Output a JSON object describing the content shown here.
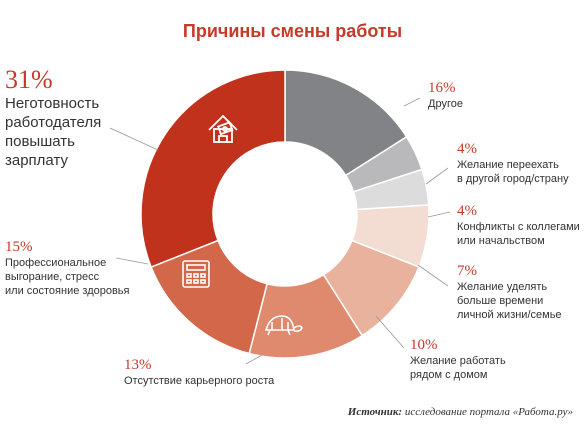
{
  "chart_data": {
    "type": "pie",
    "title": "Причины смены работы",
    "slices": [
      {
        "label": "Другое",
        "value": 16,
        "value_label": "16%",
        "color": "#828386"
      },
      {
        "label": "Желание переехать в другой город/страну",
        "value": 4,
        "value_label": "4%",
        "color": "#b9b9bb"
      },
      {
        "label": "Конфликты с коллегами или начальством",
        "value": 4,
        "value_label": "4%",
        "color": "#dcdcdd"
      },
      {
        "label": "Желание уделять больше времени личной жизни/семье",
        "value": 7,
        "value_label": "7%",
        "color": "#f3ddd3"
      },
      {
        "label": "Желание работать рядом с домом",
        "value": 10,
        "value_label": "10%",
        "color": "#e9b29c"
      },
      {
        "label": "Отсутствие карьерного роста",
        "value": 13,
        "value_label": "13%",
        "color": "#df8a6e"
      },
      {
        "label": "Профессиональное выгорание, стресс или состояние здоровья",
        "value": 15,
        "value_label": "15%",
        "color": "#d3674a"
      },
      {
        "label": "Неготовность работодателя повышать зарплату",
        "value": 31,
        "value_label": "31%",
        "color": "#c1321d"
      }
    ]
  },
  "labels": {
    "salary": {
      "pct": "31%",
      "lines": [
        "Неготовность",
        "работодателя",
        "повышать",
        "зарплату"
      ]
    },
    "other": {
      "pct": "16%",
      "lines": [
        "Другое"
      ]
    },
    "move": {
      "pct": "4%",
      "lines": [
        "Желание переехать",
        "в другой город/страну"
      ]
    },
    "conflict": {
      "pct": "4%",
      "lines": [
        "Конфликты с коллегами",
        "или начальством"
      ]
    },
    "family": {
      "pct": "7%",
      "lines": [
        "Желание уделять",
        "больше времени",
        "личной жизни/семье"
      ]
    },
    "home": {
      "pct": "10%",
      "lines": [
        "Желание работать",
        "рядом с домом"
      ]
    },
    "career": {
      "pct": "13%",
      "lines": [
        "Отсутствие карьерного роста"
      ]
    },
    "burnout": {
      "pct": "15%",
      "lines": [
        "Профессиональное",
        "выгорание, стресс",
        "или состояние здоровья"
      ]
    }
  },
  "icons": [
    "money-house-icon",
    "calculator-icon",
    "turtle-icon"
  ],
  "source": {
    "prefix": "Источник:",
    "text": "исследование портала «Работа.ру»"
  }
}
